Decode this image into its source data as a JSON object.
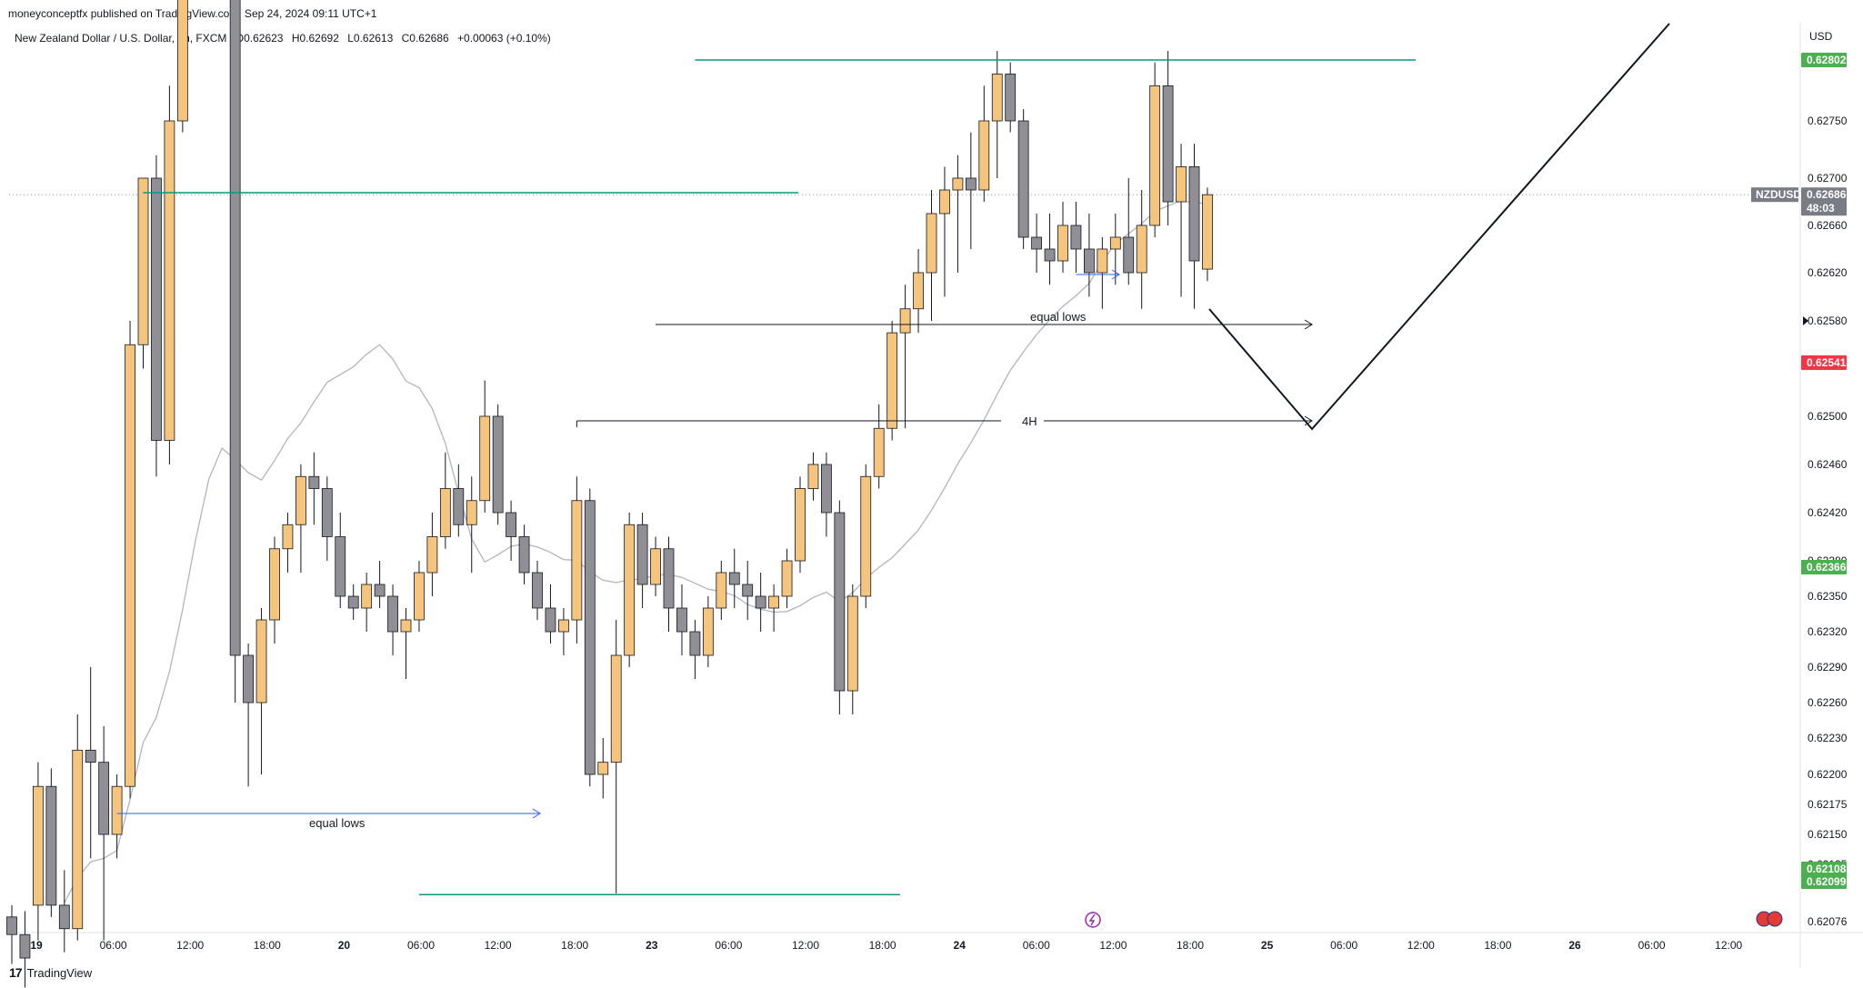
{
  "header": {
    "published": "moneyconceptfx published on TradingView.com, Sep 24, 2024 09:11 UTC+1",
    "symbol": "New Zealand Dollar / U.S. Dollar, 1h, FXCM",
    "open": "O0.62623",
    "high": "H0.62692",
    "low": "L0.62613",
    "close": "C0.62686",
    "change": "+0.00063 (+0.10%)"
  },
  "footer": {
    "brand": "TradingView"
  },
  "colors": {
    "bull": "#F5C57E",
    "bear": "#8F8F95",
    "wick": "#131722",
    "green_line": "#089981",
    "blue_line": "#2962FF",
    "red_badge": "#F23645",
    "green_badge": "#4CAF50",
    "gray_badge": "#7A7C85"
  },
  "chart_data": {
    "type": "candlestick",
    "symbol": "NZDUSD",
    "timeframe": "1h",
    "currency": "USD",
    "y_ticks": [
      0.62802,
      0.6275,
      0.627,
      0.6266,
      0.6262,
      0.6258,
      0.625,
      0.6246,
      0.6242,
      0.6238,
      0.6235,
      0.6232,
      0.6229,
      0.6226,
      0.6223,
      0.622,
      0.62175,
      0.6215,
      0.62125,
      0.621,
      0.62076
    ],
    "y_tick_labels": [
      "0.62802",
      "0.62750",
      "0.62700",
      "0.62660",
      "0.62620",
      "0.62580",
      "0.62500",
      "0.62460",
      "0.62420",
      "0.62380",
      "0.62350",
      "0.62320",
      "0.62290",
      "0.62260",
      "0.62230",
      "0.62200",
      "0.62175",
      "0.62150",
      "0.62125",
      "0.62100",
      "0.62076"
    ],
    "y_tick_show": [
      false,
      true,
      true,
      true,
      true,
      true,
      true,
      true,
      true,
      true,
      true,
      true,
      true,
      true,
      true,
      true,
      true,
      true,
      true,
      false,
      true
    ],
    "x_tick_labels": [
      "19",
      "06:00",
      "12:00",
      "18:00",
      "20",
      "06:00",
      "12:00",
      "18:00",
      "23",
      "06:00",
      "12:00",
      "18:00",
      "24",
      "06:00",
      "12:00",
      "18:00",
      "25",
      "06:00",
      "12:00",
      "18:00",
      "26",
      "06:00",
      "12:00"
    ],
    "x_tick_bar_index": [
      0,
      6,
      12,
      18,
      24,
      30,
      36,
      42,
      48,
      54,
      60,
      66,
      72,
      78,
      84,
      90,
      96,
      102,
      108,
      114,
      120,
      126,
      132
    ],
    "candles": [
      [
        0.6208,
        0.6209,
        0.6204,
        0.62065
      ],
      [
        0.62065,
        0.62085,
        0.6202,
        0.62045
      ],
      [
        0.6209,
        0.6221,
        0.6206,
        0.6219
      ],
      [
        0.6219,
        0.62205,
        0.6208,
        0.6209
      ],
      [
        0.6209,
        0.6212,
        0.6205,
        0.6207
      ],
      [
        0.6207,
        0.6225,
        0.6206,
        0.6222
      ],
      [
        0.6222,
        0.6229,
        0.6213,
        0.6221
      ],
      [
        0.6221,
        0.6224,
        0.6206,
        0.6215
      ],
      [
        0.6215,
        0.622,
        0.6213,
        0.6219
      ],
      [
        0.6219,
        0.6258,
        0.6218,
        0.6256
      ],
      [
        0.6256,
        0.6269,
        0.6254,
        0.627
      ],
      [
        0.627,
        0.6272,
        0.6245,
        0.6248
      ],
      [
        0.6248,
        0.6278,
        0.6246,
        0.6275
      ],
      [
        0.6275,
        0.6304,
        0.6274,
        0.6302
      ],
      [
        0.6302,
        0.6326,
        0.63,
        0.6323
      ],
      [
        0.6323,
        0.6324,
        0.6318,
        0.632
      ],
      [
        0.632,
        0.6324,
        0.6286,
        0.6288
      ],
      [
        0.6288,
        0.6289,
        0.6226,
        0.623
      ],
      [
        0.623,
        0.6231,
        0.6219,
        0.6226
      ],
      [
        0.6226,
        0.6234,
        0.622,
        0.6233
      ],
      [
        0.6233,
        0.624,
        0.6231,
        0.6239
      ],
      [
        0.6239,
        0.6242,
        0.6237,
        0.6241
      ],
      [
        0.6241,
        0.6246,
        0.6237,
        0.6245
      ],
      [
        0.6245,
        0.6247,
        0.6241,
        0.6244
      ],
      [
        0.6244,
        0.6245,
        0.6238,
        0.624
      ],
      [
        0.624,
        0.6242,
        0.6234,
        0.6235
      ],
      [
        0.6235,
        0.6236,
        0.6233,
        0.6234
      ],
      [
        0.6234,
        0.6237,
        0.6232,
        0.6236
      ],
      [
        0.6236,
        0.6238,
        0.6234,
        0.6235
      ],
      [
        0.6235,
        0.6236,
        0.623,
        0.6232
      ],
      [
        0.6232,
        0.6234,
        0.6228,
        0.6233
      ],
      [
        0.6233,
        0.6238,
        0.6232,
        0.6237
      ],
      [
        0.6237,
        0.6242,
        0.6235,
        0.624
      ],
      [
        0.624,
        0.6247,
        0.6239,
        0.6244
      ],
      [
        0.6244,
        0.6246,
        0.624,
        0.6241
      ],
      [
        0.6241,
        0.6245,
        0.6237,
        0.6243
      ],
      [
        0.6243,
        0.6253,
        0.6242,
        0.625
      ],
      [
        0.625,
        0.6251,
        0.6241,
        0.6242
      ],
      [
        0.6242,
        0.6243,
        0.6238,
        0.624
      ],
      [
        0.624,
        0.6241,
        0.6236,
        0.6237
      ],
      [
        0.6237,
        0.6238,
        0.6233,
        0.6234
      ],
      [
        0.6234,
        0.6236,
        0.6231,
        0.6232
      ],
      [
        0.6232,
        0.6234,
        0.623,
        0.6233
      ],
      [
        0.6233,
        0.6245,
        0.6231,
        0.6243
      ],
      [
        0.6243,
        0.6244,
        0.6219,
        0.622
      ],
      [
        0.622,
        0.6223,
        0.6218,
        0.6221
      ],
      [
        0.6221,
        0.6233,
        0.621,
        0.623
      ],
      [
        0.623,
        0.6242,
        0.6229,
        0.6241
      ],
      [
        0.6241,
        0.6242,
        0.6234,
        0.6236
      ],
      [
        0.6236,
        0.624,
        0.6235,
        0.6239
      ],
      [
        0.6239,
        0.624,
        0.6232,
        0.6234
      ],
      [
        0.6234,
        0.6236,
        0.623,
        0.6232
      ],
      [
        0.6232,
        0.6233,
        0.6228,
        0.623
      ],
      [
        0.623,
        0.6235,
        0.6229,
        0.6234
      ],
      [
        0.6234,
        0.6238,
        0.6233,
        0.6237
      ],
      [
        0.6237,
        0.6239,
        0.6234,
        0.6236
      ],
      [
        0.6236,
        0.6238,
        0.6233,
        0.6235
      ],
      [
        0.6235,
        0.6237,
        0.6232,
        0.6234
      ],
      [
        0.6234,
        0.6236,
        0.6232,
        0.6235
      ],
      [
        0.6235,
        0.6239,
        0.6234,
        0.6238
      ],
      [
        0.6238,
        0.6245,
        0.6237,
        0.6244
      ],
      [
        0.6244,
        0.6247,
        0.6243,
        0.6246
      ],
      [
        0.6246,
        0.6247,
        0.624,
        0.6242
      ],
      [
        0.6242,
        0.6243,
        0.6225,
        0.6227
      ],
      [
        0.6227,
        0.6236,
        0.6225,
        0.6235
      ],
      [
        0.6235,
        0.6246,
        0.6234,
        0.6245
      ],
      [
        0.6245,
        0.6251,
        0.6244,
        0.6249
      ],
      [
        0.6249,
        0.6258,
        0.6248,
        0.6257
      ],
      [
        0.6257,
        0.6261,
        0.6249,
        0.6259
      ],
      [
        0.6259,
        0.6264,
        0.6257,
        0.6262
      ],
      [
        0.6262,
        0.6269,
        0.6258,
        0.6267
      ],
      [
        0.6267,
        0.6271,
        0.626,
        0.6269
      ],
      [
        0.6269,
        0.6272,
        0.6262,
        0.627
      ],
      [
        0.627,
        0.6274,
        0.6264,
        0.6269
      ],
      [
        0.6269,
        0.6278,
        0.6268,
        0.6275
      ],
      [
        0.6275,
        0.6281,
        0.627,
        0.6279
      ],
      [
        0.6279,
        0.628,
        0.6274,
        0.6275
      ],
      [
        0.6275,
        0.6276,
        0.6264,
        0.6265
      ],
      [
        0.6265,
        0.6267,
        0.6262,
        0.6264
      ],
      [
        0.6264,
        0.6267,
        0.6261,
        0.6263
      ],
      [
        0.6263,
        0.6268,
        0.6262,
        0.6266
      ],
      [
        0.6266,
        0.6268,
        0.6262,
        0.6264
      ],
      [
        0.6264,
        0.6267,
        0.626,
        0.6262
      ],
      [
        0.6262,
        0.6265,
        0.6259,
        0.6264
      ],
      [
        0.6264,
        0.6267,
        0.6261,
        0.6265
      ],
      [
        0.6265,
        0.627,
        0.6261,
        0.6262
      ],
      [
        0.6262,
        0.6269,
        0.6259,
        0.6266
      ],
      [
        0.6266,
        0.628,
        0.6265,
        0.6278
      ],
      [
        0.6278,
        0.6281,
        0.6266,
        0.6268
      ],
      [
        0.6268,
        0.6273,
        0.626,
        0.6271
      ],
      [
        0.6271,
        0.6273,
        0.6259,
        0.6263
      ],
      [
        0.62623,
        0.62692,
        0.62613,
        0.62686
      ]
    ],
    "ma_series": "gray moving average",
    "annotations": {
      "equal_lows_1": "equal lows",
      "equal_lows_2": "equal lows",
      "level_4h": "4H"
    },
    "price_badges": {
      "top_green": "0.62802",
      "current_symbol": "NZDUSD",
      "current_price": "0.62686",
      "countdown": "48:03",
      "red": "0.62541",
      "green_mid": "0.62366",
      "green_low1": "0.62108",
      "green_low2": "0.62099"
    },
    "green_levels": [
      0.62802,
      0.62692,
      0.62099
    ],
    "projection_levels": [
      0.62575,
      0.62495
    ],
    "projection_path": [
      [
        0.6259,
        0
      ],
      [
        0.6249,
        1
      ],
      [
        0.6282,
        2
      ]
    ]
  }
}
